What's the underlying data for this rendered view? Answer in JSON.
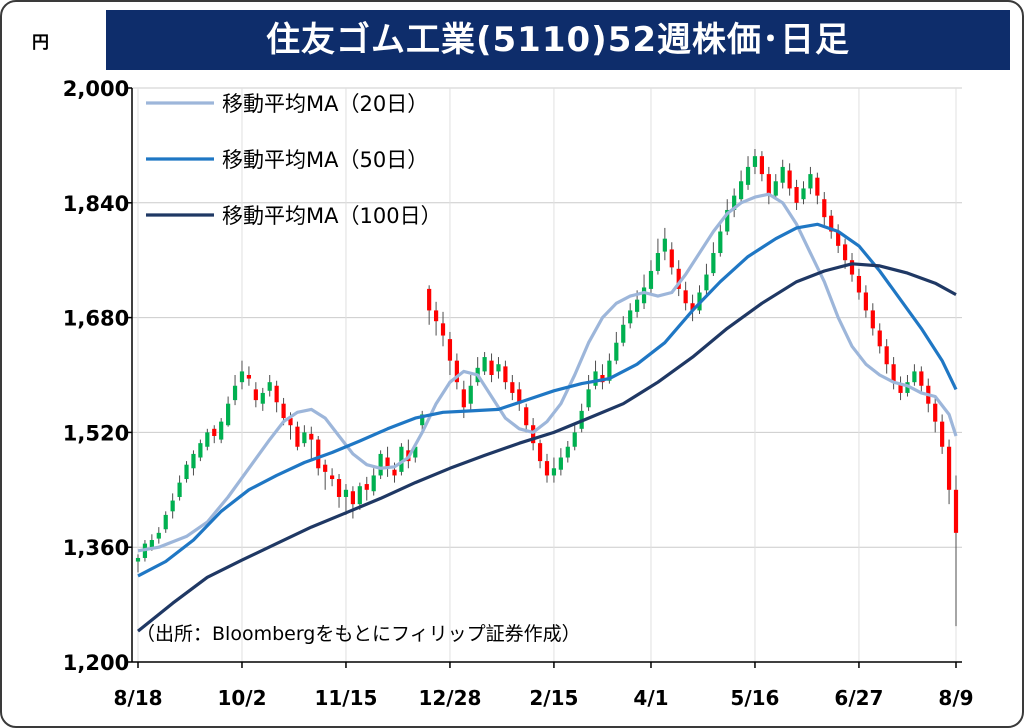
{
  "chart_data": {
    "type": "candlestick",
    "title": "住友ゴム工業(5110)52週株価･日足",
    "unit": "円",
    "ylim": [
      1200,
      2000
    ],
    "yticks": [
      2000,
      1840,
      1680,
      1520,
      1360,
      1200
    ],
    "ytick_labels": [
      "2,000",
      "1,840",
      "1,680",
      "1,520",
      "1,360",
      "1,200"
    ],
    "xtick_labels": [
      "8/18",
      "10/2",
      "11/15",
      "12/28",
      "2/15",
      "4/1",
      "5/16",
      "6/27",
      "8/9"
    ],
    "grid": true,
    "legend_position": "top-left",
    "source_note": "（出所：Bloombergをもとにフィリップ証券作成）",
    "colors": {
      "up": "#00b050",
      "down": "#ff0000",
      "ma20": "#9db6da",
      "ma50": "#1f77c4",
      "ma100": "#1f3864"
    },
    "series": [
      {
        "name": "移動平均MA（20日）",
        "key": "ma20",
        "values": [
          [
            0,
            1355
          ],
          [
            3,
            1360
          ],
          [
            7,
            1375
          ],
          [
            10,
            1395
          ],
          [
            13,
            1430
          ],
          [
            16,
            1470
          ],
          [
            19,
            1510
          ],
          [
            21,
            1535
          ],
          [
            23,
            1548
          ],
          [
            25,
            1552
          ],
          [
            27,
            1540
          ],
          [
            29,
            1515
          ],
          [
            31,
            1490
          ],
          [
            33,
            1475
          ],
          [
            35,
            1470
          ],
          [
            37,
            1472
          ],
          [
            39,
            1485
          ],
          [
            41,
            1520
          ],
          [
            43,
            1560
          ],
          [
            45,
            1590
          ],
          [
            47,
            1605
          ],
          [
            49,
            1600
          ],
          [
            51,
            1570
          ],
          [
            53,
            1540
          ],
          [
            55,
            1525
          ],
          [
            57,
            1520
          ],
          [
            59,
            1535
          ],
          [
            61,
            1560
          ],
          [
            63,
            1600
          ],
          [
            65,
            1645
          ],
          [
            67,
            1680
          ],
          [
            69,
            1700
          ],
          [
            71,
            1710
          ],
          [
            73,
            1715
          ],
          [
            75,
            1710
          ],
          [
            77,
            1715
          ],
          [
            79,
            1740
          ],
          [
            81,
            1770
          ],
          [
            83,
            1800
          ],
          [
            85,
            1825
          ],
          [
            87,
            1840
          ],
          [
            89,
            1848
          ],
          [
            91,
            1852
          ],
          [
            93,
            1840
          ],
          [
            95,
            1810
          ],
          [
            97,
            1770
          ],
          [
            99,
            1730
          ],
          [
            101,
            1680
          ],
          [
            103,
            1640
          ],
          [
            105,
            1615
          ],
          [
            107,
            1600
          ],
          [
            109,
            1590
          ],
          [
            111,
            1585
          ],
          [
            113,
            1575
          ],
          [
            115,
            1570
          ],
          [
            117,
            1545
          ],
          [
            118,
            1515
          ]
        ]
      },
      {
        "name": "移動平均MA（50日）",
        "key": "ma50",
        "values": [
          [
            0,
            1320
          ],
          [
            4,
            1340
          ],
          [
            8,
            1370
          ],
          [
            12,
            1410
          ],
          [
            16,
            1440
          ],
          [
            20,
            1460
          ],
          [
            24,
            1478
          ],
          [
            28,
            1492
          ],
          [
            32,
            1508
          ],
          [
            36,
            1525
          ],
          [
            40,
            1540
          ],
          [
            44,
            1548
          ],
          [
            48,
            1550
          ],
          [
            52,
            1552
          ],
          [
            56,
            1565
          ],
          [
            60,
            1578
          ],
          [
            64,
            1588
          ],
          [
            68,
            1595
          ],
          [
            72,
            1615
          ],
          [
            76,
            1645
          ],
          [
            80,
            1690
          ],
          [
            84,
            1730
          ],
          [
            88,
            1765
          ],
          [
            92,
            1790
          ],
          [
            95,
            1805
          ],
          [
            98,
            1810
          ],
          [
            101,
            1800
          ],
          [
            104,
            1780
          ],
          [
            107,
            1745
          ],
          [
            110,
            1705
          ],
          [
            113,
            1665
          ],
          [
            116,
            1620
          ],
          [
            118,
            1580
          ]
        ]
      },
      {
        "name": "移動平均MA（100日）",
        "key": "ma100",
        "values": [
          [
            0,
            1243
          ],
          [
            5,
            1282
          ],
          [
            10,
            1318
          ],
          [
            15,
            1342
          ],
          [
            20,
            1365
          ],
          [
            25,
            1388
          ],
          [
            30,
            1408
          ],
          [
            35,
            1428
          ],
          [
            40,
            1450
          ],
          [
            45,
            1470
          ],
          [
            50,
            1488
          ],
          [
            55,
            1505
          ],
          [
            60,
            1520
          ],
          [
            65,
            1540
          ],
          [
            70,
            1560
          ],
          [
            75,
            1590
          ],
          [
            80,
            1625
          ],
          [
            85,
            1665
          ],
          [
            90,
            1700
          ],
          [
            95,
            1730
          ],
          [
            99,
            1745
          ],
          [
            103,
            1755
          ],
          [
            107,
            1752
          ],
          [
            111,
            1742
          ],
          [
            115,
            1728
          ],
          [
            118,
            1712
          ]
        ]
      }
    ],
    "candles": [
      [
        0,
        1340,
        1345,
        1325,
        1350
      ],
      [
        1,
        1345,
        1365,
        1340,
        1370
      ],
      [
        2,
        1360,
        1370,
        1355,
        1378
      ],
      [
        3,
        1372,
        1380,
        1365,
        1388
      ],
      [
        4,
        1385,
        1405,
        1380,
        1410
      ],
      [
        5,
        1410,
        1425,
        1400,
        1435
      ],
      [
        6,
        1430,
        1450,
        1425,
        1460
      ],
      [
        7,
        1455,
        1475,
        1450,
        1480
      ],
      [
        8,
        1470,
        1490,
        1460,
        1495
      ],
      [
        9,
        1485,
        1505,
        1480,
        1510
      ],
      [
        10,
        1500,
        1520,
        1495,
        1525
      ],
      [
        11,
        1525,
        1515,
        1505,
        1530
      ],
      [
        12,
        1510,
        1535,
        1505,
        1540
      ],
      [
        13,
        1530,
        1560,
        1528,
        1570
      ],
      [
        14,
        1565,
        1585,
        1558,
        1600
      ],
      [
        15,
        1590,
        1605,
        1580,
        1620
      ],
      [
        16,
        1600,
        1595,
        1585,
        1612
      ],
      [
        17,
        1580,
        1565,
        1555,
        1590
      ],
      [
        18,
        1560,
        1575,
        1550,
        1582
      ],
      [
        19,
        1578,
        1590,
        1570,
        1600
      ],
      [
        20,
        1585,
        1562,
        1548,
        1592
      ],
      [
        21,
        1560,
        1540,
        1530,
        1568
      ],
      [
        22,
        1540,
        1530,
        1510,
        1548
      ],
      [
        23,
        1528,
        1500,
        1495,
        1535
      ],
      [
        24,
        1505,
        1520,
        1500,
        1530
      ],
      [
        25,
        1518,
        1510,
        1480,
        1528
      ],
      [
        26,
        1510,
        1470,
        1460,
        1515
      ],
      [
        27,
        1475,
        1465,
        1440,
        1482
      ],
      [
        28,
        1460,
        1455,
        1445,
        1470
      ],
      [
        29,
        1455,
        1430,
        1415,
        1462
      ],
      [
        30,
        1430,
        1440,
        1405,
        1448
      ],
      [
        31,
        1438,
        1420,
        1400,
        1445
      ],
      [
        32,
        1420,
        1445,
        1412,
        1450
      ],
      [
        33,
        1448,
        1440,
        1425,
        1458
      ],
      [
        34,
        1438,
        1460,
        1432,
        1470
      ],
      [
        35,
        1460,
        1490,
        1455,
        1495
      ],
      [
        36,
        1485,
        1470,
        1458,
        1500
      ],
      [
        37,
        1468,
        1460,
        1450,
        1478
      ],
      [
        38,
        1465,
        1500,
        1460,
        1505
      ],
      [
        39,
        1495,
        1480,
        1470,
        1510
      ],
      [
        40,
        1485,
        1500,
        1478,
        1505
      ],
      [
        41,
        1530,
        1545,
        1522,
        1550
      ],
      [
        42,
        1720,
        1690,
        1670,
        1725
      ],
      [
        43,
        1690,
        1675,
        1655,
        1702
      ],
      [
        44,
        1672,
        1655,
        1640,
        1688
      ],
      [
        45,
        1650,
        1620,
        1600,
        1660
      ],
      [
        46,
        1620,
        1590,
        1580,
        1630
      ],
      [
        47,
        1580,
        1555,
        1540,
        1592
      ],
      [
        48,
        1560,
        1585,
        1550,
        1600
      ],
      [
        49,
        1590,
        1610,
        1585,
        1625
      ],
      [
        50,
        1605,
        1625,
        1600,
        1632
      ],
      [
        51,
        1620,
        1600,
        1590,
        1630
      ],
      [
        52,
        1605,
        1615,
        1595,
        1625
      ],
      [
        53,
        1612,
        1590,
        1580,
        1620
      ],
      [
        54,
        1590,
        1575,
        1565,
        1600
      ],
      [
        55,
        1580,
        1560,
        1550,
        1590
      ],
      [
        56,
        1555,
        1530,
        1520,
        1560
      ],
      [
        57,
        1530,
        1505,
        1495,
        1540
      ],
      [
        58,
        1505,
        1480,
        1470,
        1510
      ],
      [
        59,
        1480,
        1460,
        1450,
        1490
      ],
      [
        60,
        1460,
        1470,
        1450,
        1485
      ],
      [
        61,
        1468,
        1485,
        1460,
        1498
      ],
      [
        62,
        1485,
        1500,
        1478,
        1508
      ],
      [
        63,
        1500,
        1520,
        1495,
        1530
      ],
      [
        64,
        1525,
        1550,
        1520,
        1560
      ],
      [
        65,
        1555,
        1580,
        1550,
        1600
      ],
      [
        66,
        1585,
        1605,
        1580,
        1620
      ],
      [
        67,
        1600,
        1590,
        1580,
        1615
      ],
      [
        68,
        1592,
        1620,
        1588,
        1630
      ],
      [
        69,
        1620,
        1645,
        1615,
        1660
      ],
      [
        70,
        1645,
        1670,
        1640,
        1682
      ],
      [
        71,
        1672,
        1690,
        1665,
        1700
      ],
      [
        72,
        1688,
        1705,
        1680,
        1718
      ],
      [
        73,
        1700,
        1722,
        1692,
        1740
      ],
      [
        74,
        1720,
        1745,
        1712,
        1760
      ],
      [
        75,
        1745,
        1770,
        1740,
        1790
      ],
      [
        76,
        1772,
        1790,
        1760,
        1805
      ],
      [
        77,
        1775,
        1750,
        1740,
        1785
      ],
      [
        78,
        1748,
        1720,
        1710,
        1760
      ],
      [
        79,
        1718,
        1700,
        1690,
        1730
      ],
      [
        80,
        1700,
        1690,
        1675,
        1712
      ],
      [
        81,
        1690,
        1715,
        1685,
        1725
      ],
      [
        82,
        1718,
        1740,
        1710,
        1755
      ],
      [
        83,
        1742,
        1770,
        1738,
        1785
      ],
      [
        84,
        1770,
        1800,
        1765,
        1815
      ],
      [
        85,
        1800,
        1830,
        1795,
        1845
      ],
      [
        86,
        1830,
        1850,
        1820,
        1860
      ],
      [
        87,
        1845,
        1870,
        1840,
        1885
      ],
      [
        88,
        1865,
        1890,
        1858,
        1905
      ],
      [
        89,
        1890,
        1905,
        1880,
        1915
      ],
      [
        90,
        1905,
        1880,
        1870,
        1912
      ],
      [
        91,
        1880,
        1850,
        1838,
        1890
      ],
      [
        92,
        1850,
        1870,
        1845,
        1880
      ],
      [
        93,
        1868,
        1890,
        1860,
        1900
      ],
      [
        94,
        1885,
        1860,
        1850,
        1895
      ],
      [
        95,
        1862,
        1840,
        1830,
        1872
      ],
      [
        96,
        1845,
        1860,
        1838,
        1870
      ],
      [
        97,
        1860,
        1880,
        1852,
        1890
      ],
      [
        98,
        1875,
        1850,
        1838,
        1882
      ],
      [
        99,
        1845,
        1820,
        1808,
        1855
      ],
      [
        100,
        1822,
        1800,
        1790,
        1830
      ],
      [
        101,
        1800,
        1780,
        1770,
        1810
      ],
      [
        102,
        1782,
        1760,
        1748,
        1790
      ],
      [
        103,
        1760,
        1740,
        1730,
        1770
      ],
      [
        104,
        1738,
        1715,
        1705,
        1748
      ],
      [
        105,
        1715,
        1690,
        1680,
        1725
      ],
      [
        106,
        1690,
        1665,
        1655,
        1700
      ],
      [
        107,
        1662,
        1640,
        1630,
        1672
      ],
      [
        108,
        1640,
        1615,
        1602,
        1650
      ],
      [
        109,
        1615,
        1590,
        1580,
        1625
      ],
      [
        110,
        1588,
        1575,
        1565,
        1598
      ],
      [
        111,
        1575,
        1590,
        1570,
        1600
      ],
      [
        112,
        1590,
        1605,
        1585,
        1615
      ],
      [
        113,
        1605,
        1585,
        1575,
        1612
      ],
      [
        114,
        1585,
        1560,
        1548,
        1595
      ],
      [
        115,
        1560,
        1535,
        1520,
        1570
      ],
      [
        116,
        1535,
        1500,
        1490,
        1545
      ],
      [
        117,
        1500,
        1440,
        1420,
        1510
      ],
      [
        118,
        1440,
        1380,
        1250,
        1460
      ]
    ]
  }
}
